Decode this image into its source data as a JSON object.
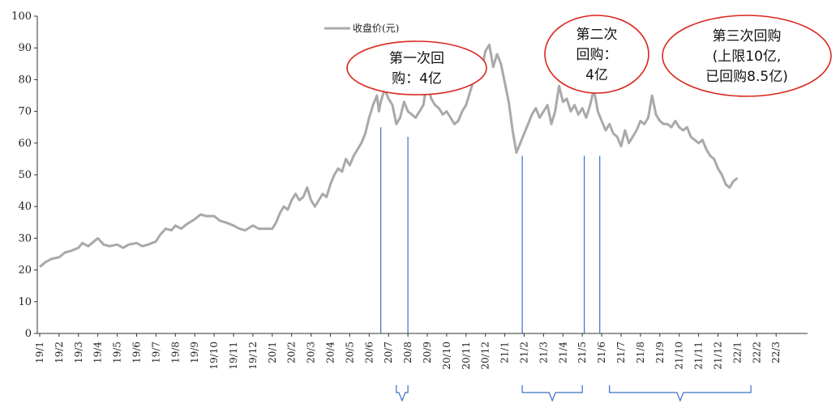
{
  "chart_data": {
    "type": "line",
    "title": "",
    "xlabel": "",
    "ylabel": "",
    "ylim": [
      0,
      100
    ],
    "yticks": [
      0,
      10,
      20,
      30,
      40,
      50,
      60,
      70,
      80,
      90,
      100
    ],
    "xticks": [
      "19/1",
      "19/2",
      "19/3",
      "19/4",
      "19/5",
      "19/6",
      "19/7",
      "19/8",
      "19/9",
      "19/10",
      "19/11",
      "19/12",
      "20/1",
      "20/2",
      "20/3",
      "20/4",
      "20/5",
      "20/6",
      "20/7",
      "20/8",
      "20/9",
      "20/10",
      "20/11",
      "20/12",
      "21/1",
      "21/2",
      "21/3",
      "21/4",
      "21/5",
      "21/6",
      "21/7",
      "21/8",
      "21/9",
      "21/10",
      "21/11",
      "21/12",
      "22/1",
      "22/2",
      "22/3"
    ],
    "legend": {
      "label": "收盘价(元)",
      "position": "top"
    },
    "grid": false,
    "series": [
      {
        "name": "收盘价(元)",
        "color": "#a9a9a9",
        "points": [
          [
            0,
            21
          ],
          [
            0.3,
            22.5
          ],
          [
            0.6,
            23.5
          ],
          [
            1,
            24
          ],
          [
            1.3,
            25.5
          ],
          [
            1.6,
            26
          ],
          [
            2,
            27
          ],
          [
            2.2,
            28.5
          ],
          [
            2.5,
            27.5
          ],
          [
            2.8,
            29
          ],
          [
            3,
            30
          ],
          [
            3.3,
            28
          ],
          [
            3.6,
            27.5
          ],
          [
            4,
            28
          ],
          [
            4.3,
            27
          ],
          [
            4.6,
            28
          ],
          [
            5,
            28.5
          ],
          [
            5.3,
            27.5
          ],
          [
            5.6,
            28
          ],
          [
            6,
            29
          ],
          [
            6.2,
            31
          ],
          [
            6.5,
            33
          ],
          [
            6.8,
            32.5
          ],
          [
            7,
            34
          ],
          [
            7.3,
            33
          ],
          [
            7.6,
            34.5
          ],
          [
            8,
            36
          ],
          [
            8.3,
            37.5
          ],
          [
            8.6,
            37
          ],
          [
            9,
            37
          ],
          [
            9.3,
            35.5
          ],
          [
            9.6,
            35
          ],
          [
            10,
            34
          ],
          [
            10.3,
            33
          ],
          [
            10.6,
            32.5
          ],
          [
            11,
            34
          ],
          [
            11.3,
            33
          ],
          [
            11.6,
            33
          ],
          [
            12,
            33
          ],
          [
            12.2,
            35
          ],
          [
            12.4,
            38
          ],
          [
            12.6,
            40
          ],
          [
            12.8,
            39
          ],
          [
            13,
            42
          ],
          [
            13.2,
            44
          ],
          [
            13.4,
            42
          ],
          [
            13.6,
            43
          ],
          [
            13.8,
            46
          ],
          [
            14,
            42
          ],
          [
            14.2,
            40
          ],
          [
            14.4,
            42
          ],
          [
            14.6,
            44
          ],
          [
            14.8,
            43
          ],
          [
            15,
            47
          ],
          [
            15.2,
            50
          ],
          [
            15.4,
            52
          ],
          [
            15.6,
            51
          ],
          [
            15.8,
            55
          ],
          [
            16,
            53
          ],
          [
            16.2,
            56
          ],
          [
            16.4,
            58
          ],
          [
            16.6,
            60
          ],
          [
            16.8,
            63
          ],
          [
            17,
            68
          ],
          [
            17.2,
            72
          ],
          [
            17.4,
            75
          ],
          [
            17.5,
            70
          ],
          [
            17.6,
            73
          ],
          [
            17.8,
            77
          ],
          [
            18,
            74
          ],
          [
            18.2,
            72
          ],
          [
            18.4,
            66
          ],
          [
            18.6,
            68
          ],
          [
            18.8,
            73
          ],
          [
            19,
            70
          ],
          [
            19.2,
            69
          ],
          [
            19.4,
            68
          ],
          [
            19.6,
            70
          ],
          [
            19.8,
            72
          ],
          [
            20,
            80
          ],
          [
            20.2,
            74
          ],
          [
            20.4,
            72
          ],
          [
            20.6,
            71
          ],
          [
            20.8,
            69
          ],
          [
            21,
            70
          ],
          [
            21.2,
            68
          ],
          [
            21.4,
            66
          ],
          [
            21.6,
            67
          ],
          [
            21.8,
            70
          ],
          [
            22,
            72
          ],
          [
            22.2,
            76
          ],
          [
            22.4,
            80
          ],
          [
            22.6,
            85
          ],
          [
            22.8,
            83
          ],
          [
            23,
            89
          ],
          [
            23.2,
            91
          ],
          [
            23.4,
            84
          ],
          [
            23.6,
            88
          ],
          [
            23.8,
            85
          ],
          [
            24,
            79
          ],
          [
            24.2,
            73
          ],
          [
            24.4,
            64
          ],
          [
            24.6,
            57
          ],
          [
            24.8,
            60
          ],
          [
            25,
            63
          ],
          [
            25.2,
            66
          ],
          [
            25.4,
            69
          ],
          [
            25.6,
            71
          ],
          [
            25.8,
            68
          ],
          [
            26,
            70
          ],
          [
            26.2,
            72
          ],
          [
            26.4,
            66
          ],
          [
            26.6,
            70
          ],
          [
            26.8,
            78
          ],
          [
            27,
            73
          ],
          [
            27.2,
            74
          ],
          [
            27.4,
            70
          ],
          [
            27.6,
            72
          ],
          [
            27.8,
            69
          ],
          [
            28,
            71
          ],
          [
            28.2,
            68
          ],
          [
            28.4,
            72
          ],
          [
            28.6,
            77
          ],
          [
            28.8,
            70
          ],
          [
            29,
            67
          ],
          [
            29.2,
            64
          ],
          [
            29.4,
            66
          ],
          [
            29.6,
            63
          ],
          [
            29.8,
            62
          ],
          [
            30,
            59
          ],
          [
            30.2,
            64
          ],
          [
            30.4,
            60
          ],
          [
            30.6,
            62
          ],
          [
            30.8,
            64
          ],
          [
            31,
            67
          ],
          [
            31.2,
            66
          ],
          [
            31.4,
            68
          ],
          [
            31.6,
            75
          ],
          [
            31.8,
            69
          ],
          [
            32,
            67
          ],
          [
            32.2,
            66
          ],
          [
            32.4,
            66
          ],
          [
            32.6,
            65
          ],
          [
            32.8,
            67
          ],
          [
            33,
            65
          ],
          [
            33.2,
            64
          ],
          [
            33.4,
            65
          ],
          [
            33.6,
            62
          ],
          [
            33.8,
            61
          ],
          [
            34,
            60
          ],
          [
            34.2,
            61
          ],
          [
            34.4,
            58
          ],
          [
            34.6,
            56
          ],
          [
            34.8,
            55
          ],
          [
            35,
            52
          ],
          [
            35.2,
            50
          ],
          [
            35.4,
            47
          ],
          [
            35.6,
            46
          ],
          [
            35.8,
            48
          ],
          [
            36,
            49
          ]
        ]
      }
    ],
    "annotations": [
      {
        "lines": [
          "第一次回",
          "购：4亿"
        ]
      },
      {
        "lines": [
          "第二次",
          "回购：",
          "4亿"
        ]
      },
      {
        "lines": [
          "第三次回购",
          "(上限10亿,",
          "已回购8.5亿)"
        ]
      }
    ],
    "markers": [
      {
        "x": 17.6
      },
      {
        "x": 19.0
      },
      {
        "x": 24.9
      },
      {
        "x": 28.1
      },
      {
        "x": 28.9
      }
    ],
    "brackets": [
      {
        "from": 18.4,
        "to": 19.0
      },
      {
        "from": 24.9,
        "to": 28.0
      },
      {
        "from": 29.4,
        "to": 36.7
      }
    ],
    "colors": {
      "line": "#a9a9a9",
      "marker": "#3a6fc4",
      "ellipse": "#d9261c",
      "axis": "#333333"
    }
  }
}
